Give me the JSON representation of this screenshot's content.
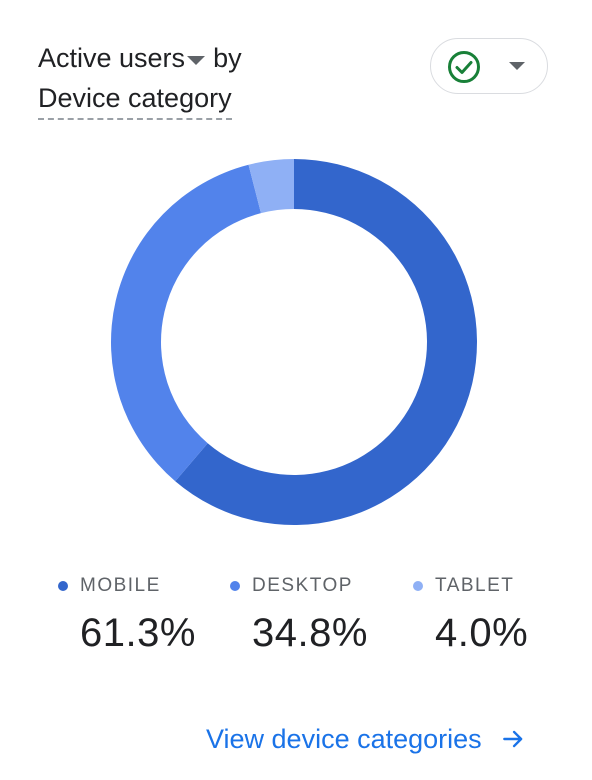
{
  "header": {
    "metric_label": "Active users",
    "by_label": "by",
    "dimension_label": "Device category"
  },
  "status": {
    "icon": "check-circle-icon",
    "accent": "#188038"
  },
  "chart_data": {
    "type": "pie",
    "donut": true,
    "categories": [
      "MOBILE",
      "DESKTOP",
      "TABLET"
    ],
    "values": [
      61.3,
      34.8,
      4.0
    ],
    "colors": [
      "#3366cc",
      "#5283eb",
      "#8fb0f5"
    ],
    "title": "",
    "order": "clockwise from top"
  },
  "legend": [
    {
      "label": "MOBILE",
      "value": "61.3%",
      "color": "#3366cc"
    },
    {
      "label": "DESKTOP",
      "value": "34.8%",
      "color": "#5283eb"
    },
    {
      "label": "TABLET",
      "value": "4.0%",
      "color": "#8fb0f5"
    }
  ],
  "footer": {
    "link_label": "View device categories",
    "color": "#1a73e8"
  }
}
